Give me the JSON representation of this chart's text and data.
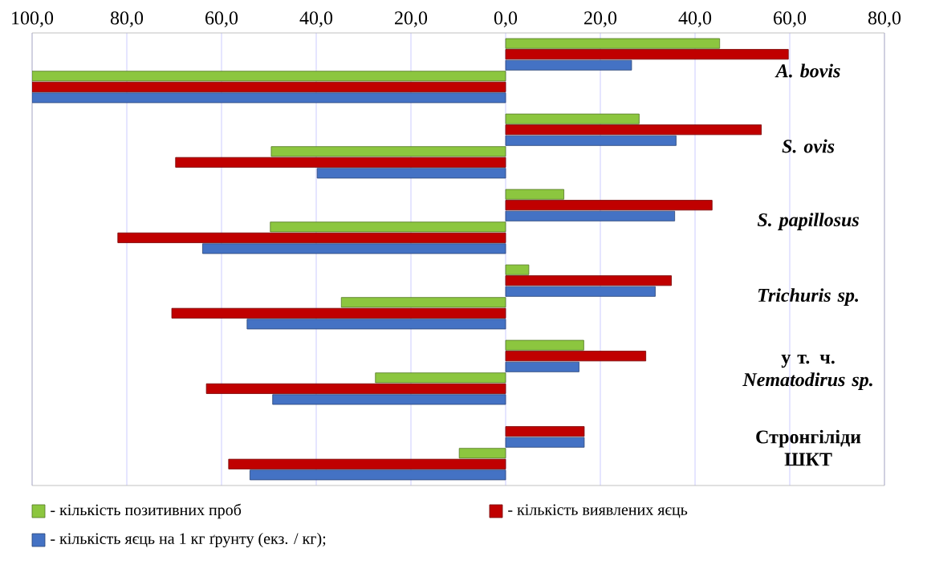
{
  "chart_data": {
    "type": "bar",
    "orientation": "horizontal",
    "categories": [
      "*A. bovis*",
      "*S. ovis*",
      "*S. papillosus*",
      "*Trichuris sp.*",
      "у т. ч. *Nematodirus sp.*",
      "Стронгіліди ШКТ"
    ],
    "series": [
      {
        "name": "- кількість позитивних проб",
        "color": "#8cc63f",
        "values": [
          45.2,
          28.2,
          12.3,
          4.9,
          16.5,
          null
        ]
      },
      {
        "name": "- кількість виявлених яєць",
        "color": "#c00000",
        "values": [
          59.7,
          54,
          43.6,
          35,
          29.6,
          16.6
        ]
      },
      {
        "name": "- кількість яєць на 1 кг ґрунту (екз. / кг);",
        "color": "#4472c4",
        "values": [
          26.6,
          36,
          35.7,
          31.6,
          15.5,
          16.6
        ]
      },
      {
        "color": "#8cc63f",
        "values": [
          -100,
          -49.5,
          -49.7,
          -34.7,
          -27.5,
          -9.8
        ]
      },
      {
        "color": "#c00000",
        "values": [
          -100,
          -69.7,
          -81.9,
          -70.5,
          -63.2,
          -58.5
        ]
      },
      {
        "color": "#4472c4",
        "values": [
          -100,
          -39.8,
          -64,
          -54.6,
          -49.2,
          -54
        ]
      }
    ],
    "xlim": [
      -100,
      80
    ],
    "xticks": [
      {
        "value": -100,
        "label": "100,0"
      },
      {
        "value": -80,
        "label": "80,0"
      },
      {
        "value": -60,
        "label": "60,0"
      },
      {
        "value": -40,
        "label": "40,0"
      },
      {
        "value": -20,
        "label": "20,0"
      },
      {
        "value": 0,
        "label": "0,0"
      },
      {
        "value": 20,
        "label": "20,0"
      },
      {
        "value": 40,
        "label": "40,0"
      },
      {
        "value": 60,
        "label": "60,0"
      },
      {
        "value": 80,
        "label": "80,0"
      }
    ],
    "grid": "x",
    "legend": "bottom"
  }
}
